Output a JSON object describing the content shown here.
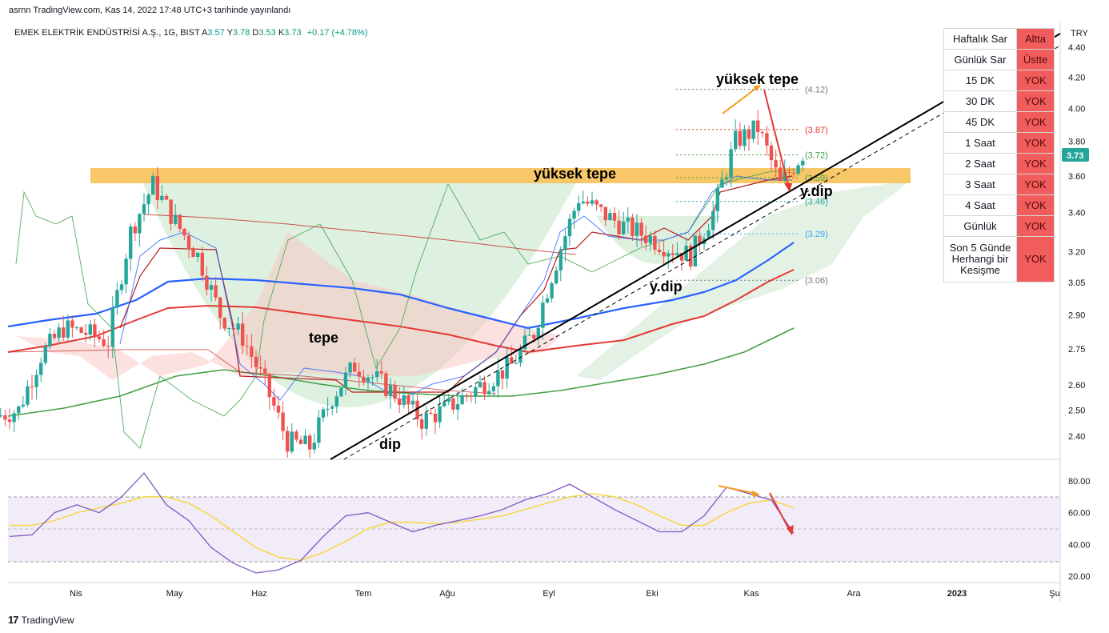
{
  "header": {
    "publisher": "asrnn TradingView.com, Kas 14, 2022 17:48 UTC+3 tarihinde yayınlandı"
  },
  "legend": {
    "symbol": "EMEK ELEKTRİK ENDÜSTRİSİ A.Ş., 1G, BIST",
    "open_label": "A",
    "open": "3.57",
    "high_label": "Y",
    "high": "3.78",
    "low_label": "D",
    "low": "3.53",
    "close_label": "K",
    "close": "3.73",
    "change": "+0.17 (+4.78%)"
  },
  "currency": "TRY",
  "last_price": "3.73",
  "price_axis_ticks": [
    "4.40",
    "4.20",
    "4.00",
    "3.80",
    "3.60",
    "3.40",
    "3.20",
    "3.05",
    "2.90",
    "2.75",
    "2.60",
    "2.50",
    "2.40"
  ],
  "rsi_axis_ticks": [
    "80.00",
    "60.00",
    "40.00",
    "20.00"
  ],
  "time_axis_ticks": [
    "Nis",
    "May",
    "Haz",
    "Tem",
    "Ağu",
    "Eyl",
    "Eki",
    "Kas",
    "Ara",
    "2023",
    "Şu"
  ],
  "level_labels": [
    "(4.12)",
    "(3.87)",
    "(3.72)",
    "(3.59)",
    "(3.46)",
    "(3.29)",
    "(3.06)"
  ],
  "annotations": {
    "yuksek_tepe_1": "yüksek tepe",
    "yuksek_tepe_2": "yüksek tepe",
    "tepe": "tepe",
    "dip": "dip",
    "y_dip_1": "y.dip",
    "y_dip_2": "y.dip"
  },
  "sar_table": [
    {
      "label": "Haftalık Sar",
      "value": "Altta"
    },
    {
      "label": "Günlük Sar",
      "value": "Üstte"
    },
    {
      "label": "15 DK",
      "value": "YOK"
    },
    {
      "label": "30 DK",
      "value": "YOK"
    },
    {
      "label": "45 DK",
      "value": "YOK"
    },
    {
      "label": "1 Saat",
      "value": "YOK"
    },
    {
      "label": "2 Saat",
      "value": "YOK"
    },
    {
      "label": "3 Saat",
      "value": "YOK"
    },
    {
      "label": "4 Saat",
      "value": "YOK"
    },
    {
      "label": "Günlük",
      "value": "YOK"
    },
    {
      "label": "Son 5 Günde Herhangi bir Kesişme",
      "value": "YOK"
    }
  ],
  "footer": {
    "brand": "TradingView"
  },
  "colors": {
    "up": "#26a69a",
    "down": "#ef5350",
    "resistance_zone": "#f5b942",
    "ma_blue": "#2962ff",
    "ma_red": "#e53935",
    "ma_green": "#43a047",
    "rsi_line": "#7e57c2",
    "rsi_ma": "#f5d742"
  },
  "chart_data": {
    "type": "candlestick",
    "y_scale": "log",
    "ylim": [
      2.32,
      4.55
    ],
    "x": [
      "Mar 14",
      "Mar 21",
      "Mar 28",
      "Apr 4",
      "Apr 11",
      "Apr 18",
      "Apr 25",
      "May 2",
      "May 9",
      "May 16",
      "May 23",
      "May 30",
      "Jun 6",
      "Jun 13",
      "Jun 20",
      "Jun 27",
      "Jul 4",
      "Jul 11",
      "Jul 18",
      "Jul 25",
      "Aug 1",
      "Aug 8",
      "Aug 15",
      "Aug 22",
      "Aug 29",
      "Sep 5",
      "Sep 12",
      "Sep 19",
      "Sep 26",
      "Oct 3",
      "Oct 10",
      "Oct 17",
      "Oct 24",
      "Oct 31",
      "Nov 7",
      "Nov 14"
    ],
    "close": [
      2.5,
      2.72,
      2.84,
      2.82,
      2.78,
      3.3,
      3.55,
      3.35,
      3.18,
      2.9,
      2.8,
      2.6,
      2.38,
      2.36,
      2.55,
      2.68,
      2.62,
      2.55,
      2.46,
      2.5,
      2.56,
      2.62,
      2.68,
      2.82,
      3.15,
      3.48,
      3.4,
      3.33,
      3.28,
      3.22,
      3.18,
      3.4,
      3.8,
      3.88,
      3.55,
      3.73
    ],
    "resistance_zone": [
      3.56,
      3.62
    ],
    "horizontal_levels": [
      4.12,
      3.87,
      3.72,
      3.59,
      3.46,
      3.29,
      3.06
    ],
    "rsi": {
      "ylim": [
        15,
        90
      ],
      "bands": [
        30,
        50,
        70
      ],
      "values": [
        45,
        46,
        60,
        65,
        60,
        70,
        85,
        65,
        55,
        38,
        28,
        22,
        24,
        30,
        45,
        58,
        60,
        54,
        48,
        52,
        55,
        58,
        62,
        68,
        72,
        78,
        70,
        62,
        55,
        48,
        48,
        58,
        76,
        72,
        68,
        47
      ],
      "signal": [
        52,
        52,
        55,
        60,
        63,
        66,
        70,
        70,
        66,
        58,
        48,
        38,
        32,
        30,
        35,
        42,
        50,
        54,
        54,
        53,
        54,
        56,
        58,
        62,
        66,
        70,
        72,
        70,
        65,
        58,
        52,
        52,
        60,
        66,
        68,
        63
      ]
    }
  }
}
